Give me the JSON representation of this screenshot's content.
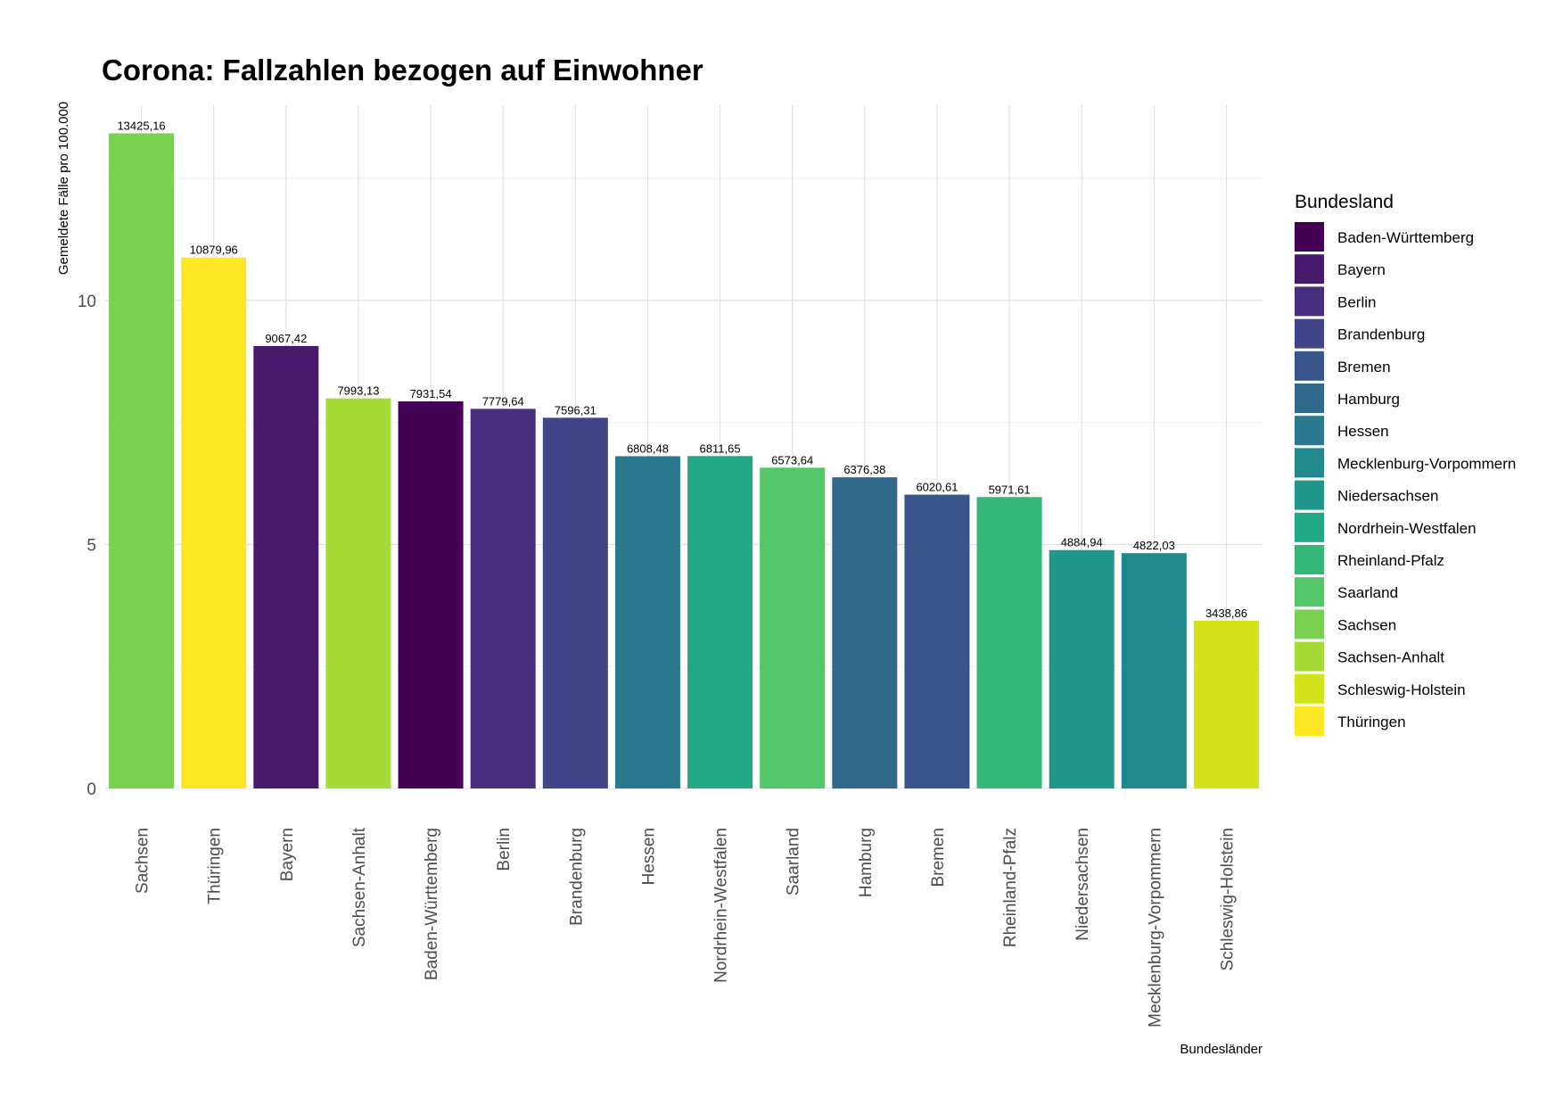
{
  "chart_data": {
    "type": "bar",
    "title": "Corona: Fallzahlen bezogen auf Einwohner",
    "xlabel": "Bundesländer",
    "ylabel": "Gemeldete Fälle pro 100.000",
    "ylim": [
      0,
      14000
    ],
    "y_ticks": [
      {
        "value": 0,
        "label": "0"
      },
      {
        "value": 5000,
        "label": "5"
      },
      {
        "value": 10000,
        "label": "10"
      }
    ],
    "grid": true,
    "legend_position": "right",
    "categories": [
      "Sachsen",
      "Thüringen",
      "Bayern",
      "Sachsen-Anhalt",
      "Baden-Württemberg",
      "Berlin",
      "Brandenburg",
      "Hessen",
      "Nordrhein-Westfalen",
      "Saarland",
      "Hamburg",
      "Bremen",
      "Rheinland-Pfalz",
      "Niedersachsen",
      "Mecklenburg-Vorpommern",
      "Schleswig-Holstein"
    ],
    "values": [
      13425.16,
      10879.96,
      9067.42,
      7993.13,
      7931.54,
      7779.64,
      7596.31,
      6808.48,
      6811.65,
      6573.64,
      6376.38,
      6020.61,
      5971.61,
      4884.94,
      4822.03,
      3438.86
    ],
    "value_labels": [
      "13425,16",
      "10879,96",
      "9067,42",
      "7993,13",
      "7931,54",
      "7779,64",
      "7596,31",
      "6808,48",
      "6811,65",
      "6573,64",
      "6376,38",
      "6020,61",
      "5971,61",
      "4884,94",
      "4822,03",
      "3438,86"
    ],
    "legend": {
      "title": "Bundesland",
      "entries": [
        {
          "name": "Baden-Württemberg",
          "color": "#440154"
        },
        {
          "name": "Bayern",
          "color": "#481a6c"
        },
        {
          "name": "Berlin",
          "color": "#472f7d"
        },
        {
          "name": "Brandenburg",
          "color": "#414487"
        },
        {
          "name": "Bremen",
          "color": "#39568c"
        },
        {
          "name": "Hamburg",
          "color": "#31688e"
        },
        {
          "name": "Hessen",
          "color": "#2a788e"
        },
        {
          "name": "Mecklenburg-Vorpommern",
          "color": "#23888e"
        },
        {
          "name": "Niedersachsen",
          "color": "#1f988b"
        },
        {
          "name": "Nordrhein-Westfalen",
          "color": "#22a884"
        },
        {
          "name": "Rheinland-Pfalz",
          "color": "#35b779"
        },
        {
          "name": "Saarland",
          "color": "#54c568"
        },
        {
          "name": "Sachsen",
          "color": "#7ad151"
        },
        {
          "name": "Sachsen-Anhalt",
          "color": "#a5db36"
        },
        {
          "name": "Schleswig-Holstein",
          "color": "#d2e21b"
        },
        {
          "name": "Thüringen",
          "color": "#fde725"
        }
      ]
    }
  }
}
